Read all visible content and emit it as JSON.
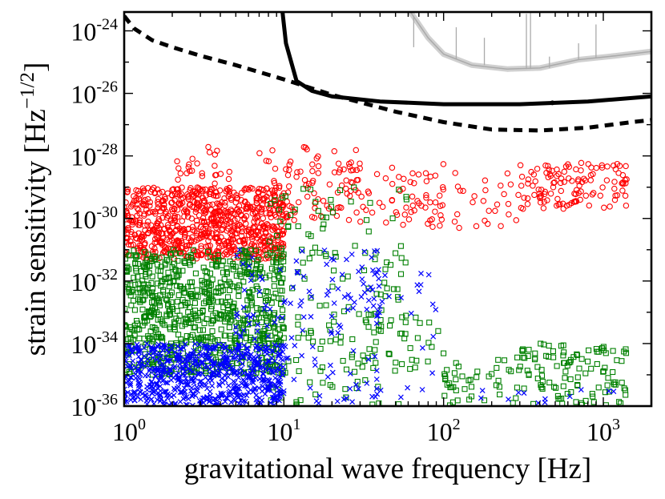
{
  "chart_data": {
    "type": "scatter",
    "xscale": "log",
    "yscale": "log",
    "xlim": [
      1,
      2000
    ],
    "ylim": [
      1e-36,
      4e-24
    ],
    "xlabel": "gravitational wave frequency [Hz]",
    "ylabel_main": "strain sensitivity [Hz",
    "ylabel_exp": "−1/2",
    "ylabel_end": "]",
    "x_ticks": [
      {
        "value": 1,
        "base": "10",
        "exp": "0"
      },
      {
        "value": 10,
        "base": "10",
        "exp": "1"
      },
      {
        "value": 100,
        "base": "10",
        "exp": "2"
      },
      {
        "value": 1000,
        "base": "10",
        "exp": "3"
      }
    ],
    "y_ticks": [
      {
        "value": 1e-24,
        "base": "10",
        "exp": "-24"
      },
      {
        "value": 1e-26,
        "base": "10",
        "exp": "-26"
      },
      {
        "value": 1e-28,
        "base": "10",
        "exp": "-28"
      },
      {
        "value": 1e-30,
        "base": "10",
        "exp": "-30"
      },
      {
        "value": 1e-32,
        "base": "10",
        "exp": "-32"
      },
      {
        "value": 1e-34,
        "base": "10",
        "exp": "-34"
      },
      {
        "value": 1e-36,
        "base": "10",
        "exp": "-36"
      }
    ],
    "colors": {
      "red": "#ff0000",
      "green": "#008000",
      "blue": "#0000ff",
      "grey": "#aaaaaa",
      "black": "#000000"
    },
    "curves": [
      {
        "name": "solid-sensitivity",
        "style": "solid",
        "points": [
          [
            9.8,
            4e-24
          ],
          [
            10.3,
            4e-25
          ],
          [
            12,
            2.5e-26
          ],
          [
            15,
            1.2e-26
          ],
          [
            20,
            8e-27
          ],
          [
            40,
            5.5e-27
          ],
          [
            100,
            4.5e-27
          ],
          [
            300,
            4.5e-27
          ],
          [
            800,
            5.5e-27
          ],
          [
            2000,
            8e-27
          ]
        ]
      },
      {
        "name": "dashed-sensitivity",
        "style": "dashed",
        "points": [
          [
            1,
            3e-24
          ],
          [
            1.15,
            1.2e-24
          ],
          [
            1.5,
            5e-25
          ],
          [
            2,
            3e-25
          ],
          [
            3,
            1.6e-25
          ],
          [
            5,
            8e-26
          ],
          [
            10,
            2.8e-26
          ],
          [
            20,
            9e-27
          ],
          [
            50,
            2.6e-27
          ],
          [
            100,
            1.2e-27
          ],
          [
            200,
            7e-28
          ],
          [
            400,
            6.5e-28
          ],
          [
            800,
            8e-28
          ],
          [
            1500,
            1.2e-27
          ],
          [
            2000,
            1.4e-27
          ]
        ]
      },
      {
        "name": "grey-noise",
        "style": "grey",
        "points": [
          [
            62,
            4e-24
          ],
          [
            80,
            6e-25
          ],
          [
            100,
            1.8e-25
          ],
          [
            150,
            8e-26
          ],
          [
            250,
            6e-26
          ],
          [
            400,
            6.5e-26
          ],
          [
            700,
            1.2e-25
          ],
          [
            1200,
            1.6e-25
          ],
          [
            2000,
            2.2e-25
          ]
        ]
      }
    ],
    "series": [
      {
        "name": "red-circles",
        "marker": "circle",
        "color": "red",
        "clusters": [
          {
            "count": 780,
            "x": [
              1,
              10
            ],
            "y": [
              5e-32,
              1e-29
            ]
          },
          {
            "count": 90,
            "x": [
              2,
              30
            ],
            "y": [
              1e-30,
              2e-28
            ]
          },
          {
            "count": 90,
            "x": [
              10,
              100
            ],
            "y": [
              5e-31,
              1e-28
            ]
          },
          {
            "count": 40,
            "x": [
              60,
              300
            ],
            "y": [
              5e-31,
              3e-29
            ]
          },
          {
            "count": 120,
            "x": [
              300,
              1400
            ],
            "y": [
              2e-30,
              6e-29
            ]
          }
        ]
      },
      {
        "name": "green-squares",
        "marker": "square",
        "color": "green",
        "clusters": [
          {
            "count": 800,
            "x": [
              1,
              10
            ],
            "y": [
              1e-35,
              1e-31
            ]
          },
          {
            "count": 160,
            "x": [
              8,
              60
            ],
            "y": [
              1e-36,
              1e-29
            ]
          },
          {
            "count": 35,
            "x": [
              30,
              100
            ],
            "y": [
              1e-35,
              1e-33
            ]
          },
          {
            "count": 45,
            "x": [
              100,
              300
            ],
            "y": [
              1e-36,
              4e-35
            ]
          },
          {
            "count": 110,
            "x": [
              300,
              1400
            ],
            "y": [
              1e-36,
              1e-34
            ]
          }
        ]
      },
      {
        "name": "blue-crosses",
        "marker": "cross",
        "color": "blue",
        "clusters": [
          {
            "count": 650,
            "x": [
              1,
              10
            ],
            "y": [
              1e-36,
              1e-34
            ]
          },
          {
            "count": 150,
            "x": [
              5,
              40
            ],
            "y": [
              1e-36,
              1e-31
            ]
          },
          {
            "count": 30,
            "x": [
              30,
              90
            ],
            "y": [
              1e-36,
              3e-32
            ]
          },
          {
            "count": 12,
            "x": [
              150,
              1400
            ],
            "y": [
              1e-36,
              4e-36
            ]
          }
        ]
      }
    ]
  }
}
